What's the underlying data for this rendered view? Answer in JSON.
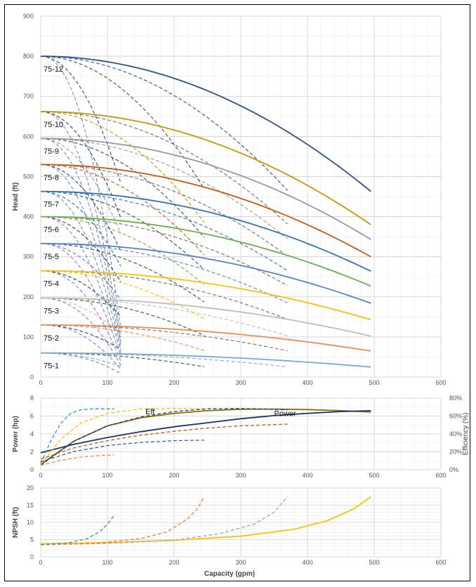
{
  "chart_data": [
    {
      "type": "line",
      "id": "head",
      "xlabel": "",
      "ylabel": "Head (ft)",
      "xlim": [
        0,
        600
      ],
      "ylim": [
        0,
        900
      ],
      "xticks": [
        0,
        100,
        200,
        300,
        400,
        500,
        600
      ],
      "yticks": [
        0,
        100,
        200,
        300,
        400,
        500,
        600,
        700,
        800,
        900
      ],
      "grid": true,
      "pumps": [
        {
          "label": "75-1",
          "shutoff": 60,
          "end_head": 25,
          "color": "#7ba7d4",
          "q_end": 495
        },
        {
          "label": "75-2",
          "shutoff": 130,
          "end_head": 65,
          "color": "#f08a55",
          "q_end": 495
        },
        {
          "label": "75-3",
          "shutoff": 197,
          "end_head": 102,
          "color": "#bdbdbd",
          "q_end": 495
        },
        {
          "label": "75-4",
          "shutoff": 265,
          "end_head": 143,
          "color": "#ffc000",
          "q_end": 495
        },
        {
          "label": "75-5",
          "shutoff": 333,
          "end_head": 184,
          "color": "#5b7fce",
          "q_end": 495
        },
        {
          "label": "75-6",
          "shutoff": 400,
          "end_head": 227,
          "color": "#70ad47",
          "q_end": 495
        },
        {
          "label": "75-7",
          "shutoff": 463,
          "end_head": 264,
          "color": "#2e75b6",
          "q_end": 495
        },
        {
          "label": "75-8",
          "shutoff": 530,
          "end_head": 300,
          "color": "#c55a11",
          "q_end": 495
        },
        {
          "label": "75-9",
          "shutoff": 595,
          "end_head": 343,
          "color": "#999999",
          "q_end": 495
        },
        {
          "label": "75-10",
          "shutoff": 662,
          "end_head": 380,
          "color": "#c49a00",
          "q_end": 495
        },
        {
          "label": "75-12",
          "shutoff": 800,
          "end_head": 463,
          "color": "#2f4f8f",
          "q_end": 495
        }
      ],
      "trim_families": [
        {
          "q_end": 120,
          "frac": 0.25,
          "color": "#1f3d7a"
        },
        {
          "q_end": 245,
          "frac": 0.5,
          "color": "#2e5f2e"
        },
        {
          "q_end": 370,
          "frac": 0.75,
          "color": "#6f6f6f"
        }
      ]
    },
    {
      "type": "line",
      "id": "power",
      "xlabel": "",
      "ylabel": "Power (hp)",
      "y2label": "Efficiency (%)",
      "xlim": [
        0,
        600
      ],
      "ylim": [
        0,
        8
      ],
      "y2lim": [
        0,
        80
      ],
      "xticks": [
        0,
        100,
        200,
        300,
        400,
        500,
        600
      ],
      "yticks": [
        0,
        2,
        4,
        6,
        8
      ],
      "y2ticks": [
        "0%",
        "20%",
        "40%",
        "60%",
        "80%"
      ],
      "grid": true,
      "annotations": [
        {
          "text": "Eff",
          "x": 157,
          "y": 6.2
        },
        {
          "text": "Power",
          "x": 350,
          "y": 6.0
        }
      ],
      "series": [
        {
          "name": "Eff",
          "color": "#8b6c00",
          "dashed": false,
          "q_end": 495,
          "points": [
            [
              0,
              0.6
            ],
            [
              50,
              3.2
            ],
            [
              100,
              4.9
            ],
            [
              150,
              5.8
            ],
            [
              200,
              6.3
            ],
            [
              250,
              6.6
            ],
            [
              300,
              6.75
            ],
            [
              350,
              6.78
            ],
            [
              400,
              6.72
            ],
            [
              450,
              6.6
            ],
            [
              495,
              6.45
            ]
          ]
        },
        {
          "name": "Power",
          "color": "#1f3564",
          "dashed": false,
          "q_end": 495,
          "points": [
            [
              0,
              1.9
            ],
            [
              50,
              2.85
            ],
            [
              100,
              3.6
            ],
            [
              150,
              4.25
            ],
            [
              200,
              4.8
            ],
            [
              250,
              5.25
            ],
            [
              300,
              5.7
            ],
            [
              350,
              6.05
            ],
            [
              400,
              6.3
            ],
            [
              450,
              6.5
            ],
            [
              495,
              6.6
            ]
          ]
        },
        {
          "name": "",
          "color": "#3b8fd6",
          "dashed": true,
          "q_end": 110,
          "points": [
            [
              0,
              0.7
            ],
            [
              15,
              3.2
            ],
            [
              30,
              5.2
            ],
            [
              45,
              6.3
            ],
            [
              60,
              6.7
            ],
            [
              80,
              6.8
            ],
            [
              110,
              6.8
            ]
          ]
        },
        {
          "name": "",
          "color": "#ffc000",
          "dashed": true,
          "q_end": 245,
          "points": [
            [
              0,
              0.6
            ],
            [
              30,
              3.4
            ],
            [
              60,
              5.2
            ],
            [
              100,
              6.3
            ],
            [
              150,
              6.8
            ],
            [
              200,
              6.85
            ],
            [
              245,
              6.8
            ]
          ]
        },
        {
          "name": "",
          "color": "#1f3d7a",
          "dashed": true,
          "q_end": 370,
          "points": [
            [
              0,
              0.5
            ],
            [
              50,
              3.2
            ],
            [
              100,
              4.9
            ],
            [
              150,
              5.9
            ],
            [
              200,
              6.5
            ],
            [
              250,
              6.8
            ],
            [
              300,
              6.85
            ],
            [
              370,
              6.7
            ]
          ]
        },
        {
          "name": "",
          "color": "#c55a11",
          "dashed": true,
          "q_end": 370,
          "points": [
            [
              0,
              1.2
            ],
            [
              50,
              2.45
            ],
            [
              100,
              3.25
            ],
            [
              150,
              3.85
            ],
            [
              200,
              4.3
            ],
            [
              250,
              4.65
            ],
            [
              300,
              4.9
            ],
            [
              370,
              5.1
            ]
          ]
        },
        {
          "name": "",
          "color": "#2f64b2",
          "dashed": true,
          "q_end": 245,
          "points": [
            [
              0,
              0.9
            ],
            [
              50,
              2.05
            ],
            [
              100,
              2.7
            ],
            [
              150,
              3.05
            ],
            [
              200,
              3.25
            ],
            [
              245,
              3.3
            ]
          ]
        },
        {
          "name": "",
          "color": "#f08a55",
          "dashed": true,
          "q_end": 110,
          "points": [
            [
              0,
              0.5
            ],
            [
              30,
              1.05
            ],
            [
              60,
              1.4
            ],
            [
              90,
              1.6
            ],
            [
              110,
              1.65
            ]
          ]
        }
      ]
    },
    {
      "type": "line",
      "id": "npsh",
      "xlabel": "Capacity (gpm)",
      "ylabel": "NPSH (ft)",
      "xlim": [
        0,
        600
      ],
      "ylim": [
        0,
        20
      ],
      "xticks": [
        0,
        100,
        200,
        300,
        400,
        500,
        600
      ],
      "yticks": [
        0,
        5,
        10,
        15,
        20
      ],
      "grid": true,
      "series": [
        {
          "name": "",
          "color": "#ffc000",
          "dashed": false,
          "q_end": 495,
          "points": [
            [
              0,
              3.8
            ],
            [
              100,
              4.1
            ],
            [
              200,
              4.8
            ],
            [
              300,
              6.0
            ],
            [
              380,
              8.0
            ],
            [
              430,
              10.5
            ],
            [
              470,
              14.0
            ],
            [
              495,
              17.5
            ]
          ]
        },
        {
          "name": "",
          "color": "#a6a6a6",
          "dashed": true,
          "q_end": 370,
          "points": [
            [
              0,
              3.5
            ],
            [
              100,
              3.9
            ],
            [
              200,
              4.8
            ],
            [
              270,
              6.8
            ],
            [
              320,
              9.5
            ],
            [
              350,
              13.0
            ],
            [
              370,
              17.5
            ]
          ]
        },
        {
          "name": "",
          "color": "#ed7d31",
          "dashed": true,
          "q_end": 245,
          "points": [
            [
              0,
              3.5
            ],
            [
              80,
              3.9
            ],
            [
              150,
              5.3
            ],
            [
              190,
              7.3
            ],
            [
              220,
              11.0
            ],
            [
              235,
              14.0
            ],
            [
              245,
              17.5
            ]
          ]
        },
        {
          "name": "",
          "color": "#3b8fd6",
          "dashed": true,
          "q_end": 110,
          "points": [
            [
              0,
              3.5
            ],
            [
              40,
              4.0
            ],
            [
              70,
              5.3
            ],
            [
              90,
              7.5
            ],
            [
              100,
              9.5
            ],
            [
              110,
              12.0
            ]
          ]
        }
      ]
    }
  ]
}
